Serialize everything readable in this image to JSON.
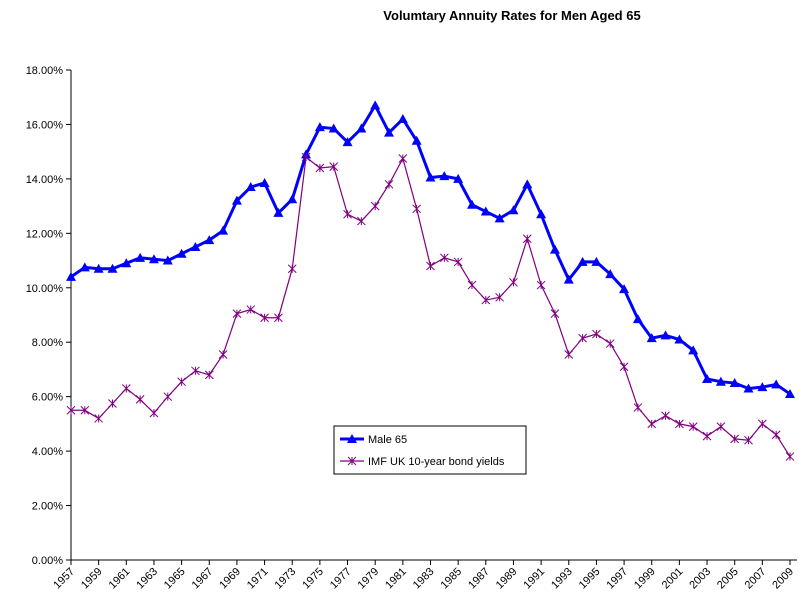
{
  "chart_data": {
    "type": "line",
    "title": "Volumtary Annuity Rates for Men Aged 65",
    "x": [
      1957,
      1958,
      1959,
      1960,
      1961,
      1962,
      1963,
      1964,
      1965,
      1966,
      1967,
      1968,
      1969,
      1970,
      1971,
      1972,
      1973,
      1974,
      1975,
      1976,
      1977,
      1978,
      1979,
      1980,
      1981,
      1982,
      1983,
      1984,
      1985,
      1986,
      1987,
      1988,
      1989,
      1990,
      1991,
      1992,
      1993,
      1994,
      1995,
      1996,
      1997,
      1998,
      1999,
      2000,
      2001,
      2002,
      2003,
      2004,
      2005,
      2006,
      2007,
      2008,
      2009
    ],
    "xlim": [
      1957,
      2009
    ],
    "xticks": [
      1957,
      1959,
      1961,
      1963,
      1965,
      1967,
      1969,
      1971,
      1973,
      1975,
      1977,
      1979,
      1981,
      1983,
      1985,
      1987,
      1989,
      1991,
      1993,
      1995,
      1997,
      1999,
      2001,
      2003,
      2005,
      2007,
      2009
    ],
    "ylim": [
      0,
      18
    ],
    "yticks": [
      {
        "value": 0,
        "label": "0.00%"
      },
      {
        "value": 2,
        "label": "2.00%"
      },
      {
        "value": 4,
        "label": "4.00%"
      },
      {
        "value": 6,
        "label": "6.00%"
      },
      {
        "value": 8,
        "label": "8.00%"
      },
      {
        "value": 10,
        "label": "10.00%"
      },
      {
        "value": 12,
        "label": "12.00%"
      },
      {
        "value": 14,
        "label": "14.00%"
      },
      {
        "value": 16,
        "label": "16.00%"
      },
      {
        "value": 18,
        "label": "18.00%"
      }
    ],
    "grid": false,
    "legend": "center",
    "series": [
      {
        "name": "Male 65",
        "color": "#0000ff",
        "marker": "triangle",
        "values": [
          10.4,
          10.75,
          10.7,
          10.7,
          10.9,
          11.1,
          11.05,
          11.0,
          11.25,
          11.5,
          11.75,
          12.1,
          13.2,
          13.7,
          13.85,
          12.75,
          13.25,
          14.9,
          15.9,
          15.85,
          15.35,
          15.85,
          16.7,
          15.7,
          16.2,
          15.4,
          14.05,
          14.1,
          14.0,
          13.05,
          12.8,
          12.55,
          12.85,
          13.8,
          12.7,
          11.4,
          10.3,
          10.95,
          10.95,
          10.5,
          9.95,
          8.85,
          8.15,
          8.25,
          8.1,
          7.7,
          6.65,
          6.55,
          6.5,
          6.3,
          6.35,
          6.45,
          6.1
        ]
      },
      {
        "name": "IMF UK 10-year bond yields",
        "color": "#800080",
        "marker": "star",
        "values": [
          5.5,
          5.5,
          5.2,
          5.75,
          6.3,
          5.9,
          5.4,
          6.0,
          6.55,
          6.95,
          6.8,
          7.55,
          9.05,
          9.2,
          8.9,
          8.9,
          10.7,
          14.8,
          14.4,
          14.45,
          12.7,
          12.45,
          13.0,
          13.8,
          14.75,
          12.9,
          10.8,
          11.1,
          10.95,
          10.1,
          9.55,
          9.65,
          10.2,
          11.8,
          10.1,
          9.05,
          7.55,
          8.15,
          8.3,
          7.95,
          7.1,
          5.6,
          5.0,
          5.3,
          5.0,
          4.9,
          4.55,
          4.9,
          4.45,
          4.4,
          5.0,
          4.6,
          3.8
        ]
      }
    ]
  }
}
